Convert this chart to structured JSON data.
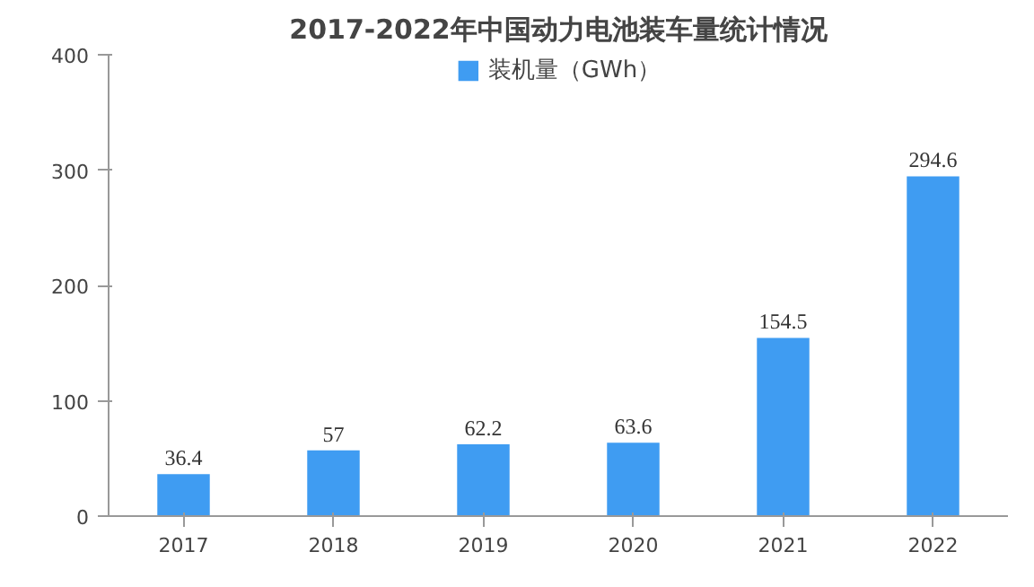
{
  "chart_data": {
    "type": "bar",
    "title": "2017-2022年中国动力电池装车量统计情况",
    "categories": [
      "2017",
      "2018",
      "2019",
      "2020",
      "2021",
      "2022"
    ],
    "series": [
      {
        "name": "装机量（GWh）",
        "color": "#3f9cf2",
        "values": [
          36.4,
          57,
          62.2,
          63.6,
          154.5,
          294.6
        ]
      }
    ],
    "ylim": [
      0,
      400
    ],
    "yticks": [
      0,
      100,
      200,
      300,
      400
    ],
    "grid": false,
    "legend": "top",
    "data_labels": true
  }
}
